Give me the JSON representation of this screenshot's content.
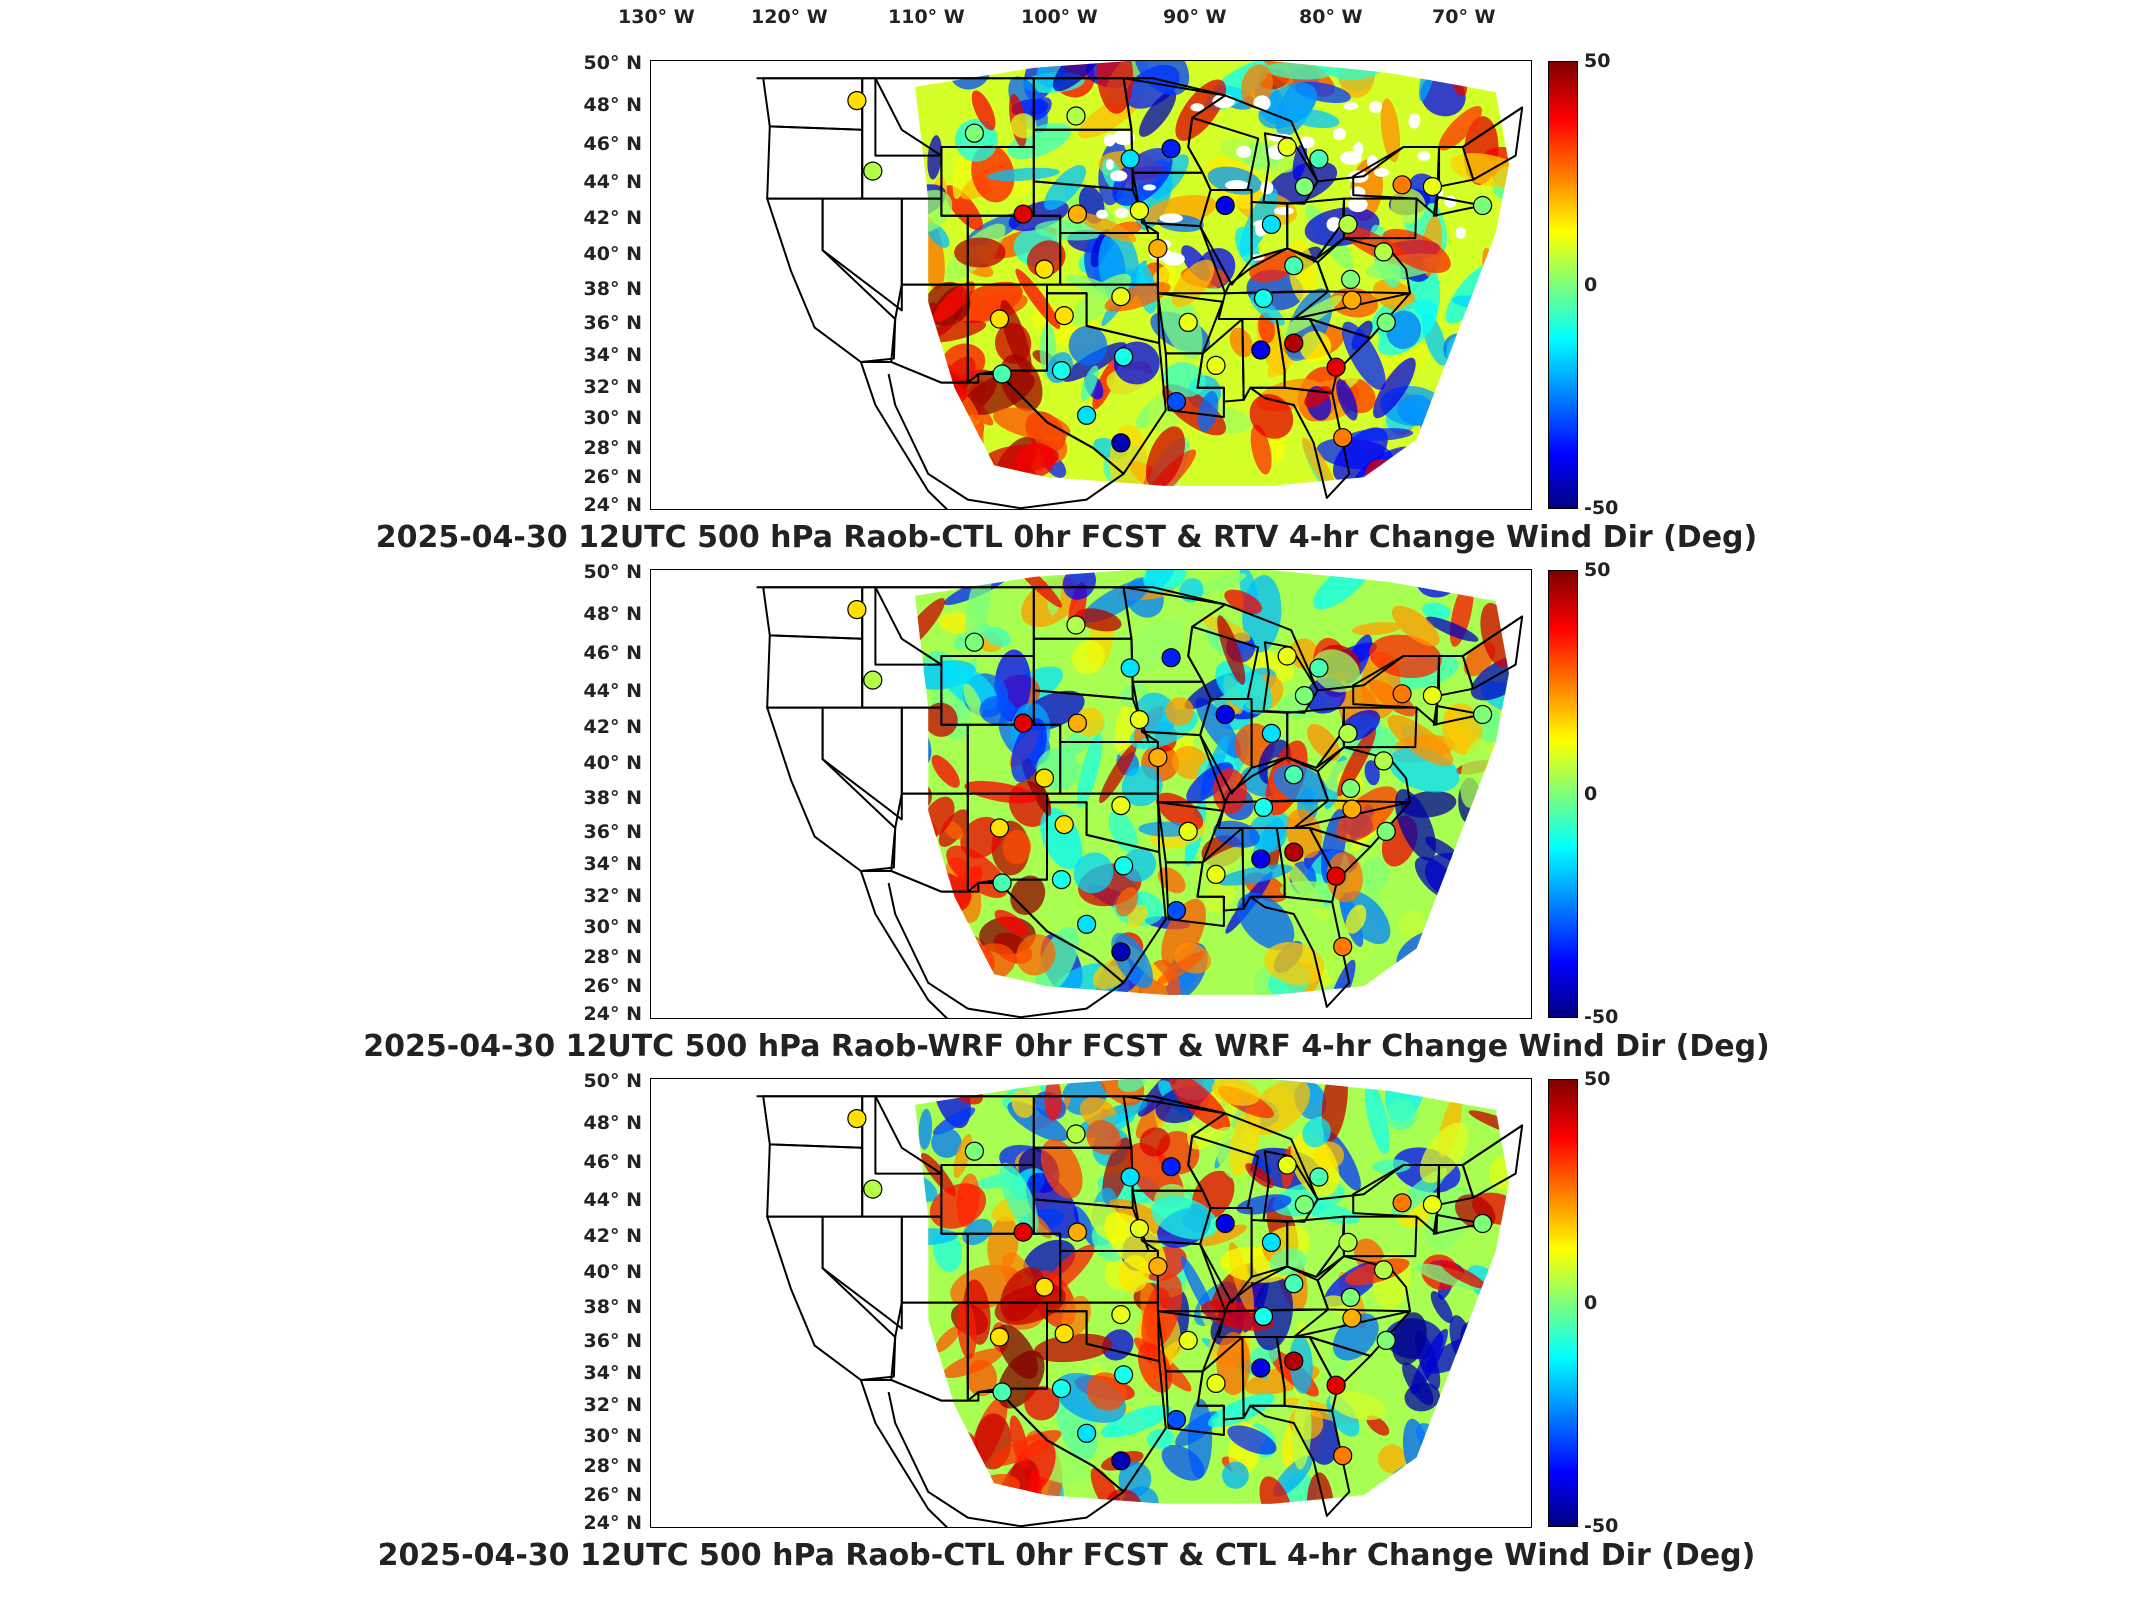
{
  "figure": {
    "lon_labels": [
      "130° W",
      "120° W",
      "110° W",
      "100° W",
      "90° W",
      "80° W",
      "70° W"
    ],
    "lat_labels": [
      "50° N",
      "48° N",
      "46° N",
      "44° N",
      "42° N",
      "40° N",
      "38° N",
      "36° N",
      "34° N",
      "32° N",
      "30° N",
      "28° N",
      "26° N",
      "24° N"
    ],
    "colorbar": {
      "max": "50",
      "mid": "0",
      "min": "-50",
      "colormap": "jet"
    },
    "panels": [
      {
        "title": "2025-04-30 12UTC 500 hPa Raob-CTL 0hr FCST & RTV 4-hr Change Wind Dir (Deg)"
      },
      {
        "title": "2025-04-30 12UTC 500 hPa Raob-WRF 0hr FCST & WRF 4-hr Change Wind Dir (Deg)"
      },
      {
        "title": "2025-04-30 12UTC 500 hPa Raob-CTL 0hr FCST & CTL 4-hr Change Wind Dir (Deg)"
      }
    ],
    "stations": [
      {
        "lon": -117.4,
        "lat": 47.7,
        "v": 15
      },
      {
        "lon": -116.2,
        "lat": 43.6,
        "v": 5
      },
      {
        "lon": -108.5,
        "lat": 45.8,
        "v": 0
      },
      {
        "lon": -104.8,
        "lat": 41.1,
        "v": 40
      },
      {
        "lon": -100.8,
        "lat": 46.8,
        "v": 5
      },
      {
        "lon": -96.7,
        "lat": 44.3,
        "v": -15
      },
      {
        "lon": -93.6,
        "lat": 44.9,
        "v": -35
      },
      {
        "lon": -89.5,
        "lat": 41.6,
        "v": -40
      },
      {
        "lon": -96.0,
        "lat": 41.3,
        "v": 10
      },
      {
        "lon": -100.7,
        "lat": 41.1,
        "v": 20
      },
      {
        "lon": -103.2,
        "lat": 37.9,
        "v": 15
      },
      {
        "lon": -97.4,
        "lat": 36.3,
        "v": 10
      },
      {
        "lon": -94.6,
        "lat": 39.1,
        "v": 20
      },
      {
        "lon": -106.6,
        "lat": 35.0,
        "v": 15
      },
      {
        "lon": -101.7,
        "lat": 35.2,
        "v": 15
      },
      {
        "lon": -106.4,
        "lat": 31.8,
        "v": -5
      },
      {
        "lon": -101.9,
        "lat": 32.0,
        "v": -10
      },
      {
        "lon": -97.2,
        "lat": 32.8,
        "v": -10
      },
      {
        "lon": -100.0,
        "lat": 29.4,
        "v": -15
      },
      {
        "lon": -97.4,
        "lat": 27.8,
        "v": -45
      },
      {
        "lon": -93.2,
        "lat": 30.2,
        "v": -30
      },
      {
        "lon": -90.2,
        "lat": 32.3,
        "v": 10
      },
      {
        "lon": -92.3,
        "lat": 34.8,
        "v": 10
      },
      {
        "lon": -86.8,
        "lat": 33.2,
        "v": -40
      },
      {
        "lon": -84.3,
        "lat": 33.6,
        "v": 45
      },
      {
        "lon": -86.6,
        "lat": 36.2,
        "v": -10
      },
      {
        "lon": -84.3,
        "lat": 38.1,
        "v": -5
      },
      {
        "lon": -86.0,
        "lat": 40.5,
        "v": -15
      },
      {
        "lon": -83.5,
        "lat": 42.7,
        "v": 0
      },
      {
        "lon": -84.8,
        "lat": 45.0,
        "v": 10
      },
      {
        "lon": -80.2,
        "lat": 40.5,
        "v": 5
      },
      {
        "lon": -80.0,
        "lat": 37.3,
        "v": 0
      },
      {
        "lon": -79.9,
        "lat": 36.1,
        "v": 20
      },
      {
        "lon": -77.3,
        "lat": 34.8,
        "v": 0
      },
      {
        "lon": -81.1,
        "lat": 32.2,
        "v": 40
      },
      {
        "lon": -80.6,
        "lat": 28.1,
        "v": 25
      },
      {
        "lon": -77.5,
        "lat": 38.9,
        "v": 5
      },
      {
        "lon": -73.8,
        "lat": 42.7,
        "v": 10
      },
      {
        "lon": -70.0,
        "lat": 41.6,
        "v": 0
      },
      {
        "lon": -76.1,
        "lat": 42.8,
        "v": 25
      },
      {
        "lon": -82.4,
        "lat": 44.3,
        "v": -5
      }
    ]
  }
}
